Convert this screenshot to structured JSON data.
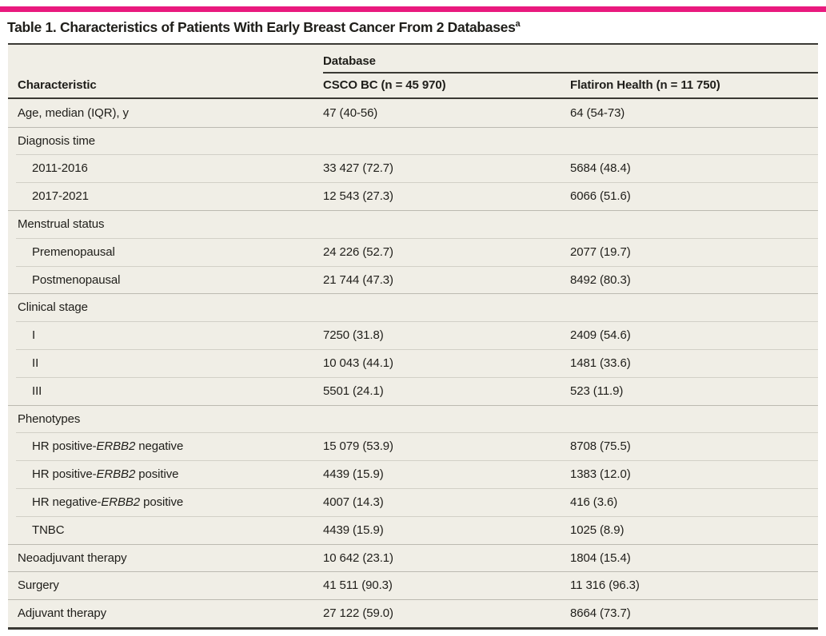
{
  "colors": {
    "accent": "#e9197e",
    "table-bg": "#f0eee6",
    "rule-dark": "#3a3934",
    "rule-med": "#bcbab1",
    "rule-light": "#d2d0c7",
    "text": "#1f1e1a"
  },
  "title": {
    "text": "Table 1. Characteristics of Patients With Early Breast Cancer From 2 Databases",
    "superscript": "a"
  },
  "table": {
    "header": {
      "group_label": "Database",
      "columns": [
        "Characteristic",
        "CSCO BC (n = 45 970)",
        "Flatiron Health (n = 11 750)"
      ]
    },
    "rows": [
      {
        "label": "Age, median (IQR), y",
        "indent": 0,
        "divider": "none",
        "values": [
          "47 (40-56)",
          "64 (54-73)"
        ]
      },
      {
        "label": "Diagnosis time",
        "indent": 0,
        "divider": "full",
        "values": [
          "",
          ""
        ]
      },
      {
        "label": "2011-2016",
        "indent": 1,
        "divider": "indent",
        "values": [
          "33 427 (72.7)",
          "5684 (48.4)"
        ]
      },
      {
        "label": "2017-2021",
        "indent": 1,
        "divider": "indent",
        "values": [
          "12 543 (27.3)",
          "6066 (51.6)"
        ]
      },
      {
        "label": "Menstrual status",
        "indent": 0,
        "divider": "full",
        "values": [
          "",
          ""
        ]
      },
      {
        "label": "Premenopausal",
        "indent": 1,
        "divider": "indent",
        "values": [
          "24 226 (52.7)",
          "2077 (19.7)"
        ]
      },
      {
        "label": "Postmenopausal",
        "indent": 1,
        "divider": "indent",
        "values": [
          "21 744 (47.3)",
          "8492 (80.3)"
        ]
      },
      {
        "label": "Clinical stage",
        "indent": 0,
        "divider": "full",
        "values": [
          "",
          ""
        ]
      },
      {
        "label": "I",
        "indent": 1,
        "divider": "indent",
        "values": [
          "7250 (31.8)",
          "2409 (54.6)"
        ]
      },
      {
        "label": "II",
        "indent": 1,
        "divider": "indent",
        "values": [
          "10 043 (44.1)",
          "1481 (33.6)"
        ]
      },
      {
        "label": "III",
        "indent": 1,
        "divider": "indent",
        "values": [
          "5501 (24.1)",
          "523 (11.9)"
        ]
      },
      {
        "label": "Phenotypes",
        "indent": 0,
        "divider": "full",
        "values": [
          "",
          ""
        ]
      },
      {
        "label": "HR positive-ERBB2 negative",
        "label_parts": [
          {
            "t": "HR positive-"
          },
          {
            "t": "ERBB2",
            "italic": true
          },
          {
            "t": " negative"
          }
        ],
        "indent": 1,
        "divider": "indent",
        "values": [
          "15 079 (53.9)",
          "8708 (75.5)"
        ]
      },
      {
        "label": "HR positive-ERBB2 positive",
        "label_parts": [
          {
            "t": "HR positive-"
          },
          {
            "t": "ERBB2",
            "italic": true
          },
          {
            "t": " positive"
          }
        ],
        "indent": 1,
        "divider": "indent",
        "values": [
          "4439 (15.9)",
          "1383 (12.0)"
        ]
      },
      {
        "label": "HR negative-ERBB2 positive",
        "label_parts": [
          {
            "t": "HR negative-"
          },
          {
            "t": "ERBB2",
            "italic": true
          },
          {
            "t": " positive"
          }
        ],
        "indent": 1,
        "divider": "indent",
        "values": [
          "4007 (14.3)",
          "416 (3.6)"
        ]
      },
      {
        "label": "TNBC",
        "indent": 1,
        "divider": "indent",
        "values": [
          "4439 (15.9)",
          "1025 (8.9)"
        ]
      },
      {
        "label": "Neoadjuvant therapy",
        "indent": 0,
        "divider": "full",
        "values": [
          "10 642 (23.1)",
          "1804 (15.4)"
        ]
      },
      {
        "label": "Surgery",
        "indent": 0,
        "divider": "full",
        "values": [
          "41 511 (90.3)",
          "11 316 (96.3)"
        ]
      },
      {
        "label": "Adjuvant therapy",
        "indent": 0,
        "divider": "full",
        "values": [
          "27 122 (59.0)",
          "8664 (73.7)"
        ]
      }
    ]
  }
}
